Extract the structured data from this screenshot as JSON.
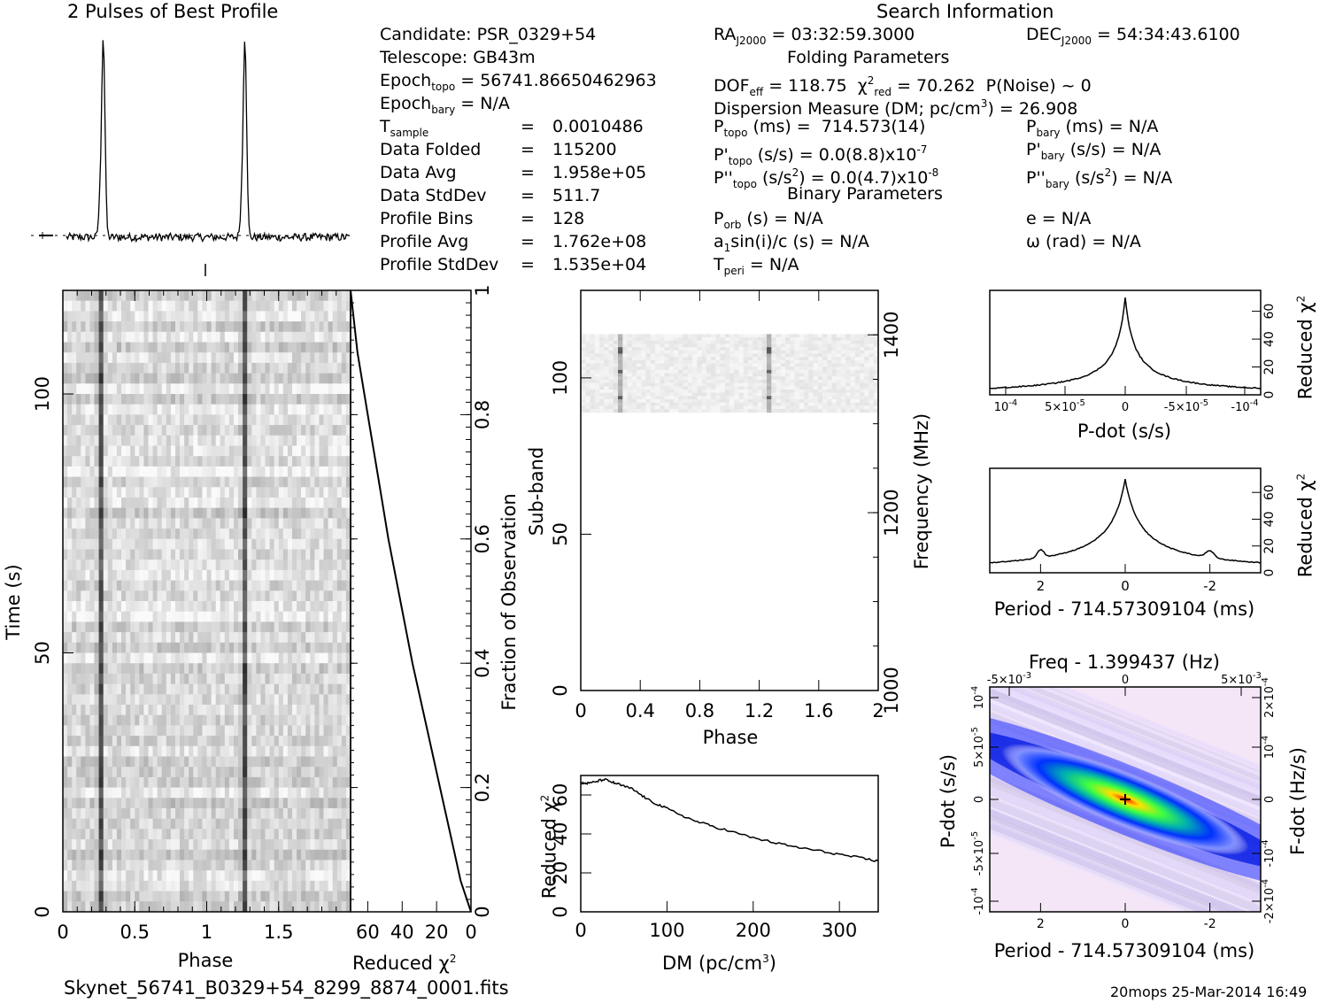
{
  "titles": {
    "profile": "2 Pulses of Best Profile",
    "search": "Search Information",
    "folding": "Folding Parameters",
    "binary": "Binary Parameters"
  },
  "info": {
    "candidate": "Candidate:  PSR_0329+54",
    "telescope": "Telescope:  GB43m",
    "epoch_topo": "56741.86650462963",
    "epoch_bary": "N/A",
    "t_sample": "0.0010486",
    "data_folded_label": "Data Folded",
    "data_folded": "115200",
    "data_avg_label": "Data Avg",
    "data_avg": "1.958e+05",
    "data_std_label": "Data StdDev",
    "data_std": "511.7",
    "profile_bins_label": "Profile Bins",
    "profile_bins": "128",
    "profile_avg_label": "Profile Avg",
    "profile_avg": "1.762e+08",
    "profile_std_label": "Profile StdDev",
    "profile_std": "1.535e+04"
  },
  "folding": {
    "ra": "03:32:59.3000",
    "dec": "54:34:43.6100",
    "dof_eff": "118.75",
    "chi2_red": "70.262",
    "p_noise": "P(Noise) ~ 0",
    "dm_label": "Dispersion Measure (DM; pc/cm",
    "dm_value": "26.908",
    "p_topo": "714.573(14)",
    "p_bary": "N/A",
    "pd_topo": "0.0(8.8)x10",
    "pd_topo_exp": "-7",
    "pd_bary": "N/A",
    "pdd_topo": "0.0(4.7)x10",
    "pdd_topo_exp": "-8",
    "pdd_bary": "N/A"
  },
  "binary": {
    "p_orb": "N/A",
    "a1sini": "N/A",
    "t_peri": "N/A",
    "e": "N/A",
    "omega": "N/A"
  },
  "footer": {
    "filename": "Skynet_56741_B0329+54_8299_8874_0001.fits",
    "stamp": "20mops 25-Mar-2014 16:49"
  },
  "chart_data": [
    {
      "type": "line",
      "name": "pulse-profile",
      "x_range": [
        0,
        2
      ],
      "pulse_phases": [
        0.26,
        1.26
      ],
      "peak_relative": 1.0
    },
    {
      "type": "heatmap",
      "name": "time-vs-phase",
      "xlabel": "Phase",
      "ylabel": "Time (s)",
      "xlim": [
        0,
        2
      ],
      "ylim": [
        0,
        120
      ],
      "xticks": [
        "0",
        "0.5",
        "1",
        "1.5"
      ],
      "yticks": [
        "0",
        "50",
        "100"
      ],
      "pulse_phases": [
        0.26,
        1.26
      ]
    },
    {
      "type": "line",
      "name": "reduced-chi2-vs-fraction",
      "xlabel": "Reduced χ2",
      "ylabel": "Fraction of Observation",
      "xlim": [
        70,
        0
      ],
      "ylim": [
        0,
        1
      ],
      "xticks": [
        "60",
        "40",
        "20",
        "0"
      ],
      "yticks": [
        "0",
        "0.2",
        "0.4",
        "0.6",
        "0.8",
        "1"
      ],
      "fraction": [
        0,
        0.05,
        0.1,
        0.2,
        0.3,
        0.4,
        0.5,
        0.6,
        0.7,
        0.8,
        0.9,
        1.0
      ],
      "chi2": [
        0,
        6,
        10,
        18,
        26,
        34,
        41,
        48,
        54,
        60,
        66,
        70
      ]
    },
    {
      "type": "heatmap",
      "name": "subband-vs-phase",
      "xlabel": "Phase",
      "ylabel": "Sub-band",
      "y2label": "Frequency (MHz)",
      "xlim": [
        0,
        2
      ],
      "ylim": [
        0,
        128
      ],
      "xticks": [
        "0",
        "0.4",
        "0.8",
        "1.2",
        "1.6",
        "2"
      ],
      "yticks": [
        "0",
        "50",
        "100"
      ],
      "y2ticks": [
        "1000",
        "1200",
        "1400"
      ],
      "active_subbands": [
        89,
        114
      ],
      "pulse_phases": [
        0.26,
        1.26
      ]
    },
    {
      "type": "line",
      "name": "chi2-vs-dm",
      "xlabel": "DM (pc/cm3)",
      "ylabel": "Reduced χ2",
      "xlim": [
        0,
        345
      ],
      "ylim": [
        0,
        70
      ],
      "xticks": [
        "0",
        "100",
        "200",
        "300"
      ],
      "yticks": [
        "0",
        "20",
        "40",
        "60"
      ],
      "x": [
        0,
        10,
        27,
        40,
        60,
        80,
        100,
        130,
        160,
        200,
        240,
        280,
        320,
        345
      ],
      "y": [
        66,
        66,
        68,
        66,
        63,
        57,
        53,
        47,
        43,
        38,
        34,
        31,
        28,
        26
      ]
    },
    {
      "type": "line",
      "name": "chi2-vs-pdot",
      "xlabel": "P-dot (s/s)",
      "ylabel": "Reduced χ2",
      "xlim": [
        0.00012,
        -0.00012
      ],
      "ylim": [
        0,
        75
      ],
      "xticks": [
        "10",
        "5×10",
        "0",
        "-5×10",
        "-10"
      ],
      "xtick_exps": [
        "-4",
        "-5",
        "",
        "-5",
        "-4"
      ],
      "yticks": [
        "0",
        "20",
        "40",
        "60"
      ],
      "peak": 70
    },
    {
      "type": "line",
      "name": "chi2-vs-period",
      "xlabel": "Period - 714.57309104 (ms)",
      "ylabel": "Reduced χ2",
      "xlim": [
        3.2,
        -3.2
      ],
      "ylim": [
        0,
        78
      ],
      "xticks": [
        "2",
        "0",
        "-2"
      ],
      "yticks": [
        "0",
        "20",
        "40",
        "60"
      ],
      "peak": 70
    },
    {
      "type": "heatmap",
      "name": "pdot-vs-period",
      "xlabel": "Period - 714.57309104 (ms)",
      "ylabel": "P-dot (s/s)",
      "top_label": "Freq - 1.399437 (Hz)",
      "y2label": "F-dot (Hz/s)",
      "xlim": [
        3.2,
        -3.2
      ],
      "ylim": [
        0.0001,
        -0.0001
      ],
      "xticks": [
        "2",
        "0",
        "-2"
      ],
      "topticks": [
        "-5×10",
        "0",
        "5×10"
      ],
      "topticks_exp": [
        "-3",
        "",
        "-3"
      ],
      "yticks": [
        "10",
        "5×10",
        "0",
        "-5×10",
        "-10"
      ],
      "ytick_exps": [
        "-4",
        "-5",
        "",
        "-5",
        "-4"
      ],
      "y2ticks": [
        "-2×10",
        "-10",
        "0",
        "10",
        "2×10"
      ],
      "y2tick_exps": [
        "-4",
        "-4",
        "",
        "-4",
        "-4"
      ],
      "peak": [
        0,
        0
      ]
    }
  ]
}
